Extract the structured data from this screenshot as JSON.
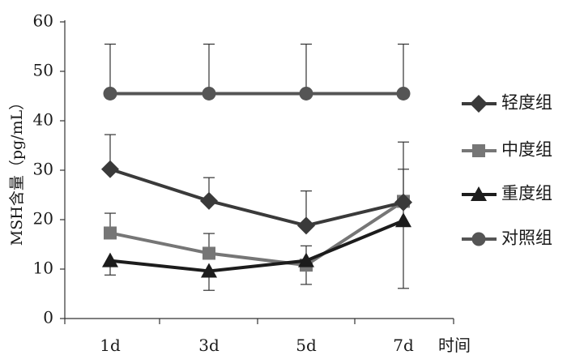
{
  "chart_data": {
    "type": "line",
    "categories": [
      "1d",
      "3d",
      "5d",
      "7d"
    ],
    "xlabel": "时间",
    "ylabel": "MSH含量（pg/mL）",
    "ylim": [
      0,
      60
    ],
    "yticks": [
      0,
      10,
      20,
      30,
      40,
      50,
      60
    ],
    "grid": false,
    "legend_position": "right",
    "series": [
      {
        "name": "轻度组",
        "values": [
          30.2,
          23.8,
          18.8,
          23.5
        ],
        "error_upper": [
          37.2,
          28.5,
          25.8,
          30.2
        ],
        "error_lower": [
          null,
          null,
          null,
          null
        ],
        "marker": "diamond",
        "color": "#3a3a3a"
      },
      {
        "name": "中度组",
        "values": [
          17.3,
          13.2,
          10.8,
          23.7
        ],
        "error_upper": [
          21.3,
          17.2,
          14.7,
          35.7
        ],
        "error_lower": [
          null,
          null,
          6.9,
          6.1
        ],
        "marker": "square",
        "color": "#767676"
      },
      {
        "name": "重度组",
        "values": [
          11.7,
          9.6,
          11.7,
          19.8
        ],
        "error_upper": [
          null,
          null,
          null,
          null
        ],
        "error_lower": [
          8.8,
          5.7,
          null,
          null
        ],
        "marker": "triangle",
        "color": "#1c1c1c"
      },
      {
        "name": "对照组",
        "values": [
          45.5,
          45.5,
          45.5,
          45.5
        ],
        "error_upper": [
          55.5,
          55.5,
          55.5,
          55.5
        ],
        "error_lower": [
          null,
          null,
          null,
          null
        ],
        "marker": "circle",
        "color": "#555555"
      }
    ]
  }
}
